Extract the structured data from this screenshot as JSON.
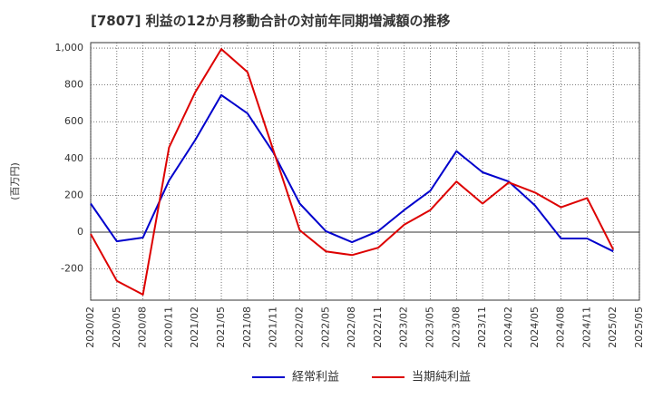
{
  "chart_data": {
    "type": "line",
    "title": "[7807]  利益の12か月移動合計の対前年同期増減額の推移",
    "ylabel": "(百万円)",
    "xlabel": "",
    "ylim": [
      -370,
      1030
    ],
    "yticks": [
      -200,
      0,
      200,
      400,
      600,
      800,
      1000
    ],
    "ytick_labels": [
      "-200",
      "0",
      "200",
      "400",
      "600",
      "800",
      "1,000"
    ],
    "categories": [
      "2020/02",
      "2020/05",
      "2020/08",
      "2020/11",
      "2021/02",
      "2021/05",
      "2021/08",
      "2021/11",
      "2022/02",
      "2022/05",
      "2022/08",
      "2022/11",
      "2023/02",
      "2023/05",
      "2023/08",
      "2023/11",
      "2024/02",
      "2024/05",
      "2024/08",
      "2024/11",
      "2025/02",
      "2025/05"
    ],
    "series": [
      {
        "name": "経常利益",
        "color": "#0000cc",
        "values": [
          155,
          -50,
          -30,
          280,
          500,
          745,
          645,
          430,
          155,
          5,
          -55,
          5,
          120,
          225,
          440,
          325,
          275,
          145,
          -35,
          -35,
          -105,
          null
        ]
      },
      {
        "name": "当期純利益",
        "color": "#dd0000",
        "values": [
          -10,
          -265,
          -340,
          460,
          760,
          995,
          870,
          440,
          10,
          -105,
          -125,
          -85,
          40,
          120,
          275,
          155,
          270,
          215,
          135,
          185,
          -95,
          null
        ]
      }
    ],
    "grid": true,
    "legend": "bottom-center"
  }
}
